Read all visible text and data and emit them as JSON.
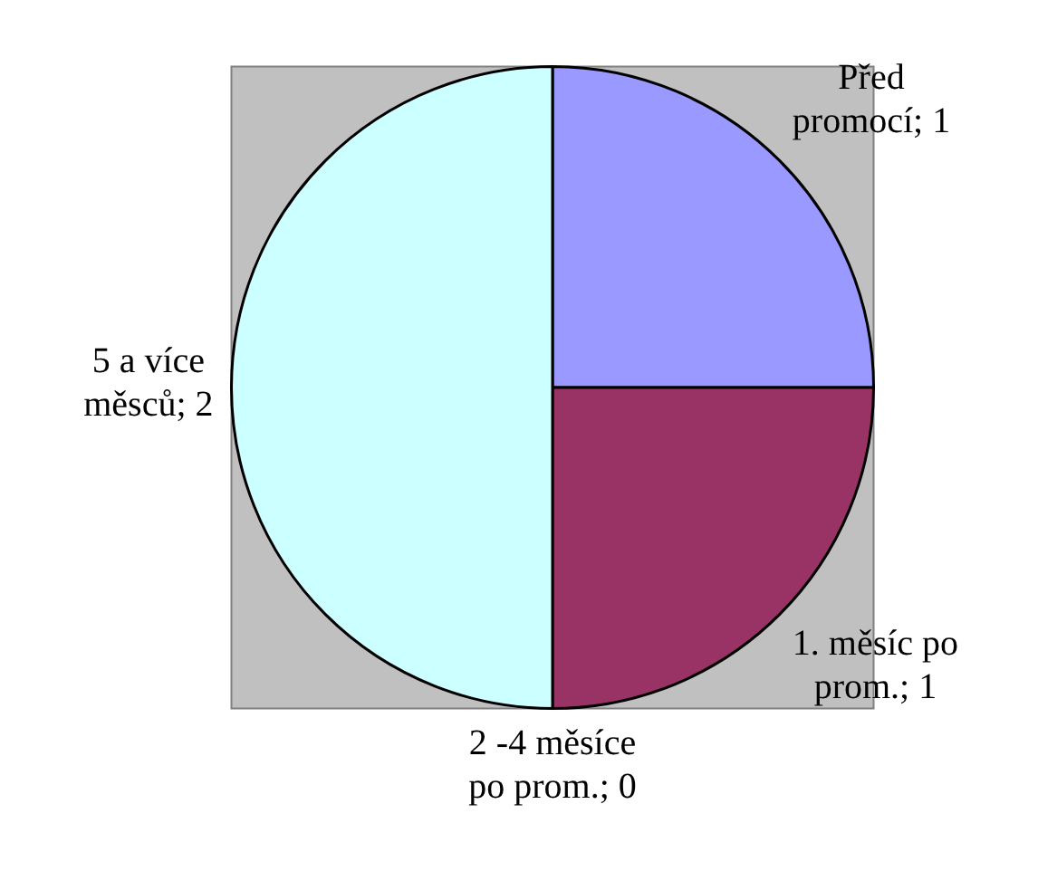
{
  "chart_data": {
    "type": "pie",
    "categories": [
      "Před promocí",
      "1. měsíc po prom.",
      "2 -4 měsíce po prom.",
      "5 a více měsců"
    ],
    "values": [
      1,
      1,
      0,
      2
    ],
    "colors": [
      "#9999ff",
      "#993366",
      "#ffffcc",
      "#ccffff"
    ],
    "value_labels": [
      "; 1",
      "; 1",
      "; 0",
      "; 2"
    ],
    "legend": false
  }
}
